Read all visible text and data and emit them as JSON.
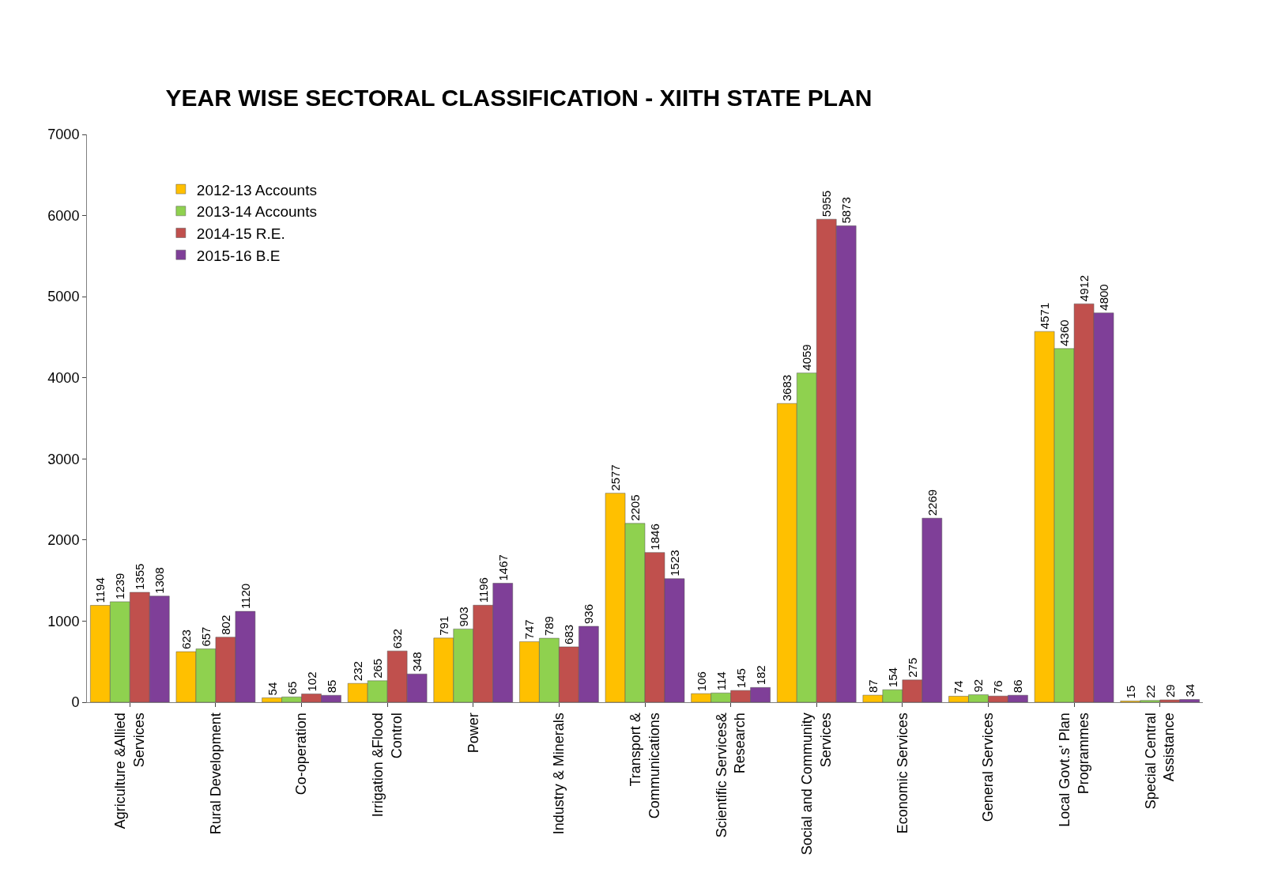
{
  "chart_data": {
    "type": "bar",
    "title": "YEAR WISE SECTORAL CLASSIFICATION - XIITH STATE PLAN",
    "categories": [
      "Agriculture &Allied Services",
      "Rural Development",
      "Co-operation",
      "Irrigation &Flood Control",
      "Power",
      "Industry & Minerals",
      "Transport & Communications",
      "Scientific Services& Research",
      "Social and Community Services",
      "Economic Services",
      "General Services",
      "Local Govt.s' Plan Programmes",
      "Special Central Assistance"
    ],
    "series": [
      {
        "name": "2012-13 Accounts",
        "color": "#ffc000",
        "values": [
          1194,
          623,
          54,
          232,
          791,
          747,
          2577,
          106,
          3683,
          87,
          74,
          4571,
          15
        ]
      },
      {
        "name": "2013-14 Accounts",
        "color": "#8fd14f",
        "values": [
          1239,
          657,
          65,
          265,
          903,
          789,
          2205,
          114,
          4059,
          154,
          92,
          4360,
          22
        ]
      },
      {
        "name": "2014-15 R.E.",
        "color": "#c0504d",
        "values": [
          1355,
          802,
          102,
          632,
          1196,
          683,
          1846,
          145,
          5955,
          275,
          76,
          4912,
          29
        ]
      },
      {
        "name": "2015-16 B.E",
        "color": "#7f3f98",
        "values": [
          1308,
          1120,
          85,
          348,
          1467,
          936,
          1523,
          182,
          5873,
          2269,
          86,
          4800,
          34
        ]
      }
    ],
    "ylim": [
      0,
      7000
    ],
    "yticks": [
      0,
      1000,
      2000,
      3000,
      4000,
      5000,
      6000,
      7000
    ],
    "data_labels": true,
    "legend": "top left",
    "grid": false
  }
}
